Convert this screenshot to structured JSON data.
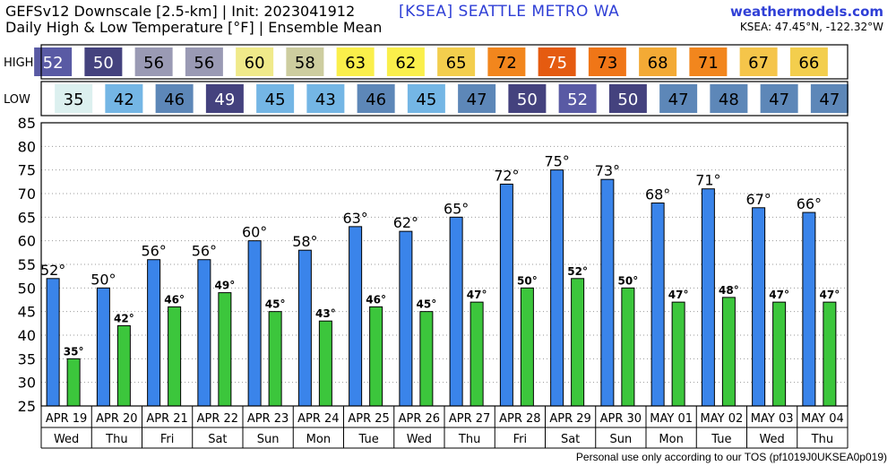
{
  "header": {
    "title_line1": "GEFSv12 Downscale [2.5-km] | Init: 2023041912",
    "title_line2": "Daily High & Low Temperature [°F] | Ensemble Mean",
    "station": "[KSEA]   SEATTLE METRO   WA",
    "site": "weathermodels.com",
    "coords": "KSEA: 47.45°N, -122.32°W"
  },
  "rows": {
    "high_label": "HIGH",
    "low_label": "LOW"
  },
  "footer": {
    "note": "Personal use only according to our TOS (pf1019J0UKSEA0p019)"
  },
  "colors": {
    "high_bar": "#3a84ea",
    "low_bar": "#3cc63c",
    "bar_edge": "#000000",
    "grid": "#9a9a9a"
  },
  "chart_data": {
    "type": "bar",
    "categories": [
      "APR 19",
      "APR 20",
      "APR 21",
      "APR 22",
      "APR 23",
      "APR 24",
      "APR 25",
      "APR 26",
      "APR 27",
      "APR 28",
      "APR 29",
      "APR 30",
      "MAY 01",
      "MAY 02",
      "MAY 03",
      "MAY 04"
    ],
    "weekdays": [
      "Wed",
      "Thu",
      "Fri",
      "Sat",
      "Sun",
      "Mon",
      "Tue",
      "Wed",
      "Thu",
      "Fri",
      "Sat",
      "Sun",
      "Mon",
      "Tue",
      "Wed",
      "Thu"
    ],
    "series": [
      {
        "name": "HIGH",
        "values": [
          52,
          50,
          56,
          56,
          60,
          58,
          63,
          62,
          65,
          72,
          75,
          73,
          68,
          71,
          67,
          66
        ]
      },
      {
        "name": "LOW",
        "values": [
          35,
          42,
          46,
          49,
          45,
          43,
          46,
          45,
          47,
          50,
          52,
          50,
          47,
          48,
          47,
          47
        ]
      }
    ],
    "ylim": [
      25,
      85
    ],
    "yticks": [
      25,
      30,
      35,
      40,
      45,
      50,
      55,
      60,
      65,
      70,
      75,
      80,
      85
    ],
    "grid": true,
    "value_suffix": "°",
    "title": "",
    "xlabel": "",
    "ylabel": ""
  }
}
